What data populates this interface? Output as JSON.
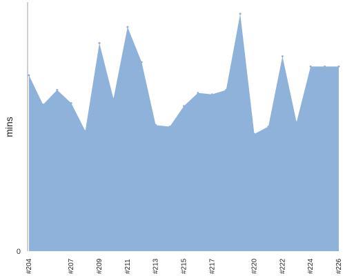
{
  "chart_data": {
    "type": "area",
    "title": "",
    "xlabel": "",
    "ylabel": "mins",
    "y_tick_labels": [
      "0"
    ],
    "ylim": [
      0,
      17
    ],
    "grid": false,
    "legend": "none",
    "colors": {
      "fill": "#8fb2da",
      "axis": "#a0a0a0"
    },
    "categories": [
      "#204",
      "#205",
      "#206",
      "#207",
      "#208",
      "#209",
      "#210",
      "#211",
      "#212",
      "#213",
      "#214",
      "#215",
      "#216",
      "#217",
      "#218",
      "#219",
      "#220",
      "#221",
      "#222",
      "#223",
      "#224",
      "#225",
      "#226"
    ],
    "visible_tick_labels": [
      "#204",
      "#207",
      "#209",
      "#211",
      "#213",
      "#215",
      "#217",
      "#220",
      "#222",
      "#224",
      "#226"
    ],
    "values": [
      12.0,
      10.0,
      11.0,
      10.1,
      8.2,
      14.2,
      10.4,
      15.3,
      12.9,
      8.6,
      8.5,
      9.9,
      10.8,
      10.7,
      11.0,
      16.2,
      8.0,
      8.5,
      13.3,
      8.8,
      12.6,
      12.6,
      12.6
    ]
  }
}
